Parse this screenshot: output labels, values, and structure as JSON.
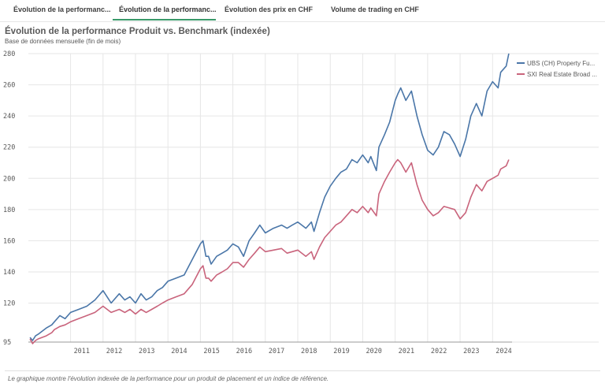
{
  "tabs": [
    {
      "label": "Évolution de la performanc...",
      "active": false
    },
    {
      "label": "Évolution de la performanc...",
      "active": true
    },
    {
      "label": "Évolution des prix en CHF",
      "active": false
    },
    {
      "label": "Volume de trading en CHF",
      "active": false
    }
  ],
  "footer": "Le graphique montre l'évolution indexée de la performance pour un produit de placement et un indice de référence.",
  "colors": {
    "series1": "#4a76a8",
    "series2": "#c9647c",
    "grid": "#e6e6e6",
    "accent": "#3a9a6a"
  },
  "chart_data": {
    "type": "line",
    "title": "Évolution de la performance Produit vs. Benchmark (indexée)",
    "subtitle": "Base de données mensuelle (fin de mois)",
    "xlabel": "",
    "ylabel": "",
    "xlim": [
      2009.7,
      2024.6
    ],
    "ylim": [
      95,
      280
    ],
    "yticks": [
      95,
      120,
      140,
      160,
      180,
      200,
      220,
      240,
      260,
      280
    ],
    "xticks": [
      2011,
      2012,
      2013,
      2014,
      2015,
      2016,
      2017,
      2018,
      2019,
      2020,
      2021,
      2022,
      2023,
      2024
    ],
    "grid": true,
    "legend_position": "top-right",
    "series": [
      {
        "name": "UBS (CH) Property Fu...",
        "x": [
          2009.75,
          2009.83,
          2009.92,
          2010.0,
          2010.25,
          2010.42,
          2010.5,
          2010.67,
          2010.83,
          2011.0,
          2011.25,
          2011.5,
          2011.75,
          2012.0,
          2012.25,
          2012.5,
          2012.67,
          2012.83,
          2013.0,
          2013.17,
          2013.33,
          2013.5,
          2013.67,
          2013.83,
          2014.0,
          2014.25,
          2014.5,
          2014.75,
          2015.0,
          2015.08,
          2015.17,
          2015.25,
          2015.33,
          2015.5,
          2015.67,
          2015.83,
          2016.0,
          2016.17,
          2016.33,
          2016.5,
          2016.67,
          2016.83,
          2017.0,
          2017.25,
          2017.5,
          2017.67,
          2017.83,
          2018.0,
          2018.25,
          2018.42,
          2018.5,
          2018.67,
          2018.83,
          2019.0,
          2019.17,
          2019.33,
          2019.5,
          2019.67,
          2019.83,
          2020.0,
          2020.17,
          2020.25,
          2020.42,
          2020.5,
          2020.67,
          2020.83,
          2021.0,
          2021.08,
          2021.17,
          2021.33,
          2021.5,
          2021.67,
          2021.83,
          2022.0,
          2022.17,
          2022.33,
          2022.5,
          2022.67,
          2022.83,
          2023.0,
          2023.17,
          2023.33,
          2023.5,
          2023.67,
          2023.83,
          2024.0,
          2024.17,
          2024.25,
          2024.42,
          2024.5
        ],
        "values": [
          98,
          96,
          99,
          100,
          104,
          106,
          108,
          112,
          110,
          114,
          116,
          118,
          122,
          128,
          120,
          126,
          122,
          124,
          120,
          126,
          122,
          124,
          128,
          130,
          134,
          136,
          138,
          148,
          158,
          160,
          150,
          150,
          145,
          150,
          152,
          154,
          158,
          156,
          150,
          160,
          165,
          170,
          165,
          168,
          170,
          168,
          170,
          172,
          168,
          172,
          166,
          178,
          188,
          195,
          200,
          204,
          206,
          212,
          210,
          215,
          210,
          214,
          205,
          220,
          228,
          236,
          250,
          254,
          258,
          250,
          256,
          240,
          228,
          218,
          215,
          220,
          230,
          228,
          222,
          214,
          225,
          240,
          248,
          240,
          256,
          262,
          258,
          268,
          272,
          280
        ]
      },
      {
        "name": "SXI Real Estate Broad ...",
        "x": [
          2009.75,
          2009.83,
          2009.92,
          2010.0,
          2010.25,
          2010.42,
          2010.5,
          2010.67,
          2010.83,
          2011.0,
          2011.25,
          2011.5,
          2011.75,
          2012.0,
          2012.25,
          2012.5,
          2012.67,
          2012.83,
          2013.0,
          2013.17,
          2013.33,
          2013.5,
          2013.67,
          2013.83,
          2014.0,
          2014.25,
          2014.5,
          2014.75,
          2015.0,
          2015.08,
          2015.17,
          2015.25,
          2015.33,
          2015.5,
          2015.67,
          2015.83,
          2016.0,
          2016.17,
          2016.33,
          2016.5,
          2016.67,
          2016.83,
          2017.0,
          2017.25,
          2017.5,
          2017.67,
          2017.83,
          2018.0,
          2018.25,
          2018.42,
          2018.5,
          2018.67,
          2018.83,
          2019.0,
          2019.17,
          2019.33,
          2019.5,
          2019.67,
          2019.83,
          2020.0,
          2020.17,
          2020.25,
          2020.42,
          2020.5,
          2020.67,
          2020.83,
          2021.0,
          2021.08,
          2021.17,
          2021.33,
          2021.5,
          2021.67,
          2021.83,
          2022.0,
          2022.17,
          2022.33,
          2022.5,
          2022.67,
          2022.83,
          2023.0,
          2023.17,
          2023.33,
          2023.5,
          2023.67,
          2023.83,
          2024.0,
          2024.17,
          2024.25,
          2024.42,
          2024.5
        ],
        "values": [
          97,
          94,
          96,
          97,
          99,
          101,
          103,
          105,
          106,
          108,
          110,
          112,
          114,
          118,
          114,
          116,
          114,
          116,
          113,
          116,
          114,
          116,
          118,
          120,
          122,
          124,
          126,
          132,
          142,
          144,
          136,
          136,
          134,
          138,
          140,
          142,
          146,
          146,
          143,
          148,
          152,
          156,
          153,
          154,
          155,
          152,
          153,
          154,
          150,
          153,
          148,
          156,
          162,
          166,
          170,
          172,
          176,
          180,
          178,
          182,
          178,
          181,
          176,
          190,
          198,
          204,
          210,
          212,
          210,
          204,
          210,
          196,
          186,
          180,
          176,
          178,
          182,
          181,
          180,
          174,
          178,
          188,
          196,
          192,
          198,
          200,
          202,
          206,
          208,
          212
        ]
      }
    ]
  }
}
